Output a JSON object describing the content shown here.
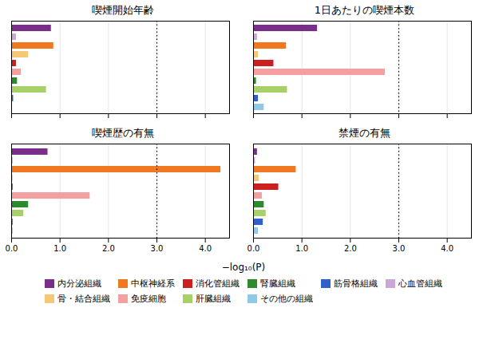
{
  "chart_data": [
    {
      "type": "bar",
      "orientation": "horizontal",
      "title": "喫煙開始年齢",
      "categories": [
        "内分泌組織",
        "心血管組織",
        "中枢神経系",
        "骨・結合組織",
        "消化管組織",
        "免疫細胞",
        "腎臓組織",
        "肝臓組織",
        "筋骨格組織",
        "その他の組織"
      ],
      "values": [
        0.82,
        0.1,
        0.87,
        0.35,
        0.1,
        0.2,
        0.12,
        0.72,
        0.04,
        0.01
      ],
      "colors": [
        "#7B2D8B",
        "#C9A8D8",
        "#F07820",
        "#F5C878",
        "#CC2020",
        "#F4A0A0",
        "#2D8B2D",
        "#A8D068",
        "#3060C8",
        "#90C8E8"
      ],
      "xlim": [
        0,
        4.5
      ],
      "xticks": [
        0,
        1,
        2,
        3,
        4
      ],
      "grid": true,
      "tick_labels": false,
      "reference_lines": [
        {
          "x": 3.0,
          "line_style": "dotted"
        }
      ]
    },
    {
      "type": "bar",
      "orientation": "horizontal",
      "title": "1日あたりの喫煙本数",
      "categories": [
        "内分泌組織",
        "心血管組織",
        "中枢神経系",
        "骨・結合組織",
        "消化管組織",
        "免疫細胞",
        "腎臓組織",
        "肝臓組織",
        "筋骨格組織",
        "その他の組織"
      ],
      "values": [
        1.32,
        0.08,
        0.68,
        0.1,
        0.42,
        2.72,
        0.06,
        0.7,
        0.1,
        0.22
      ],
      "colors": [
        "#7B2D8B",
        "#C9A8D8",
        "#F07820",
        "#F5C878",
        "#CC2020",
        "#F4A0A0",
        "#2D8B2D",
        "#A8D068",
        "#3060C8",
        "#90C8E8"
      ],
      "xlim": [
        0,
        4.5
      ],
      "xticks": [
        0,
        1,
        2,
        3,
        4
      ],
      "grid": true,
      "tick_labels": false,
      "reference_lines": [
        {
          "x": 3.0,
          "line_style": "dotted"
        }
      ]
    },
    {
      "type": "bar",
      "orientation": "horizontal",
      "title": "喫煙歴の有無",
      "categories": [
        "内分泌組織",
        "心血管組織",
        "中枢神経系",
        "骨・結合組織",
        "消化管組織",
        "免疫細胞",
        "腎臓組織",
        "肝臓組織",
        "筋骨格組織",
        "その他の組織"
      ],
      "values": [
        0.75,
        0.03,
        4.32,
        0.03,
        0.03,
        1.62,
        0.35,
        0.25,
        0.03,
        0.03
      ],
      "colors": [
        "#7B2D8B",
        "#C9A8D8",
        "#F07820",
        "#F5C878",
        "#CC2020",
        "#F4A0A0",
        "#2D8B2D",
        "#A8D068",
        "#3060C8",
        "#90C8E8"
      ],
      "xlim": [
        0,
        4.5
      ],
      "xticks": [
        0,
        1,
        2,
        3,
        4
      ],
      "grid": true,
      "tick_labels": "x",
      "reference_lines": [
        {
          "x": 3.0,
          "line_style": "dotted"
        }
      ]
    },
    {
      "type": "bar",
      "orientation": "horizontal",
      "title": "禁煙の有無",
      "categories": [
        "内分泌組織",
        "心血管組織",
        "中枢神経系",
        "骨・結合組織",
        "消化管組織",
        "免疫細胞",
        "腎臓組織",
        "肝臓組織",
        "筋骨格組織",
        "その他の組織"
      ],
      "values": [
        0.08,
        0.04,
        0.88,
        0.12,
        0.52,
        0.18,
        0.22,
        0.26,
        0.2,
        0.1
      ],
      "colors": [
        "#7B2D8B",
        "#C9A8D8",
        "#F07820",
        "#F5C878",
        "#CC2020",
        "#F4A0A0",
        "#2D8B2D",
        "#A8D068",
        "#3060C8",
        "#90C8E8"
      ],
      "xlim": [
        0,
        4.5
      ],
      "xticks": [
        0,
        1,
        2,
        3,
        4
      ],
      "grid": true,
      "tick_labels": "x",
      "reference_lines": [
        {
          "x": 3.0,
          "line_style": "dotted"
        }
      ]
    }
  ],
  "xlabel": "−log₁₀(P)",
  "legend": "bottom",
  "legend_entries": [
    {
      "name": "内分泌組織",
      "color": "#7B2D8B"
    },
    {
      "name": "中枢神経系",
      "color": "#F07820"
    },
    {
      "name": "消化管組織",
      "color": "#CC2020"
    },
    {
      "name": "腎臓組織",
      "color": "#2D8B2D"
    },
    {
      "name": "筋骨格組織",
      "color": "#3060C8"
    },
    {
      "name": "心血管組織",
      "color": "#C9A8D8"
    },
    {
      "name": "骨・結合組織",
      "color": "#F5C878"
    },
    {
      "name": "免疫細胞",
      "color": "#F4A0A0"
    },
    {
      "name": "肝臓組織",
      "color": "#A8D068"
    },
    {
      "name": "その他の組織",
      "color": "#90C8E8"
    }
  ]
}
